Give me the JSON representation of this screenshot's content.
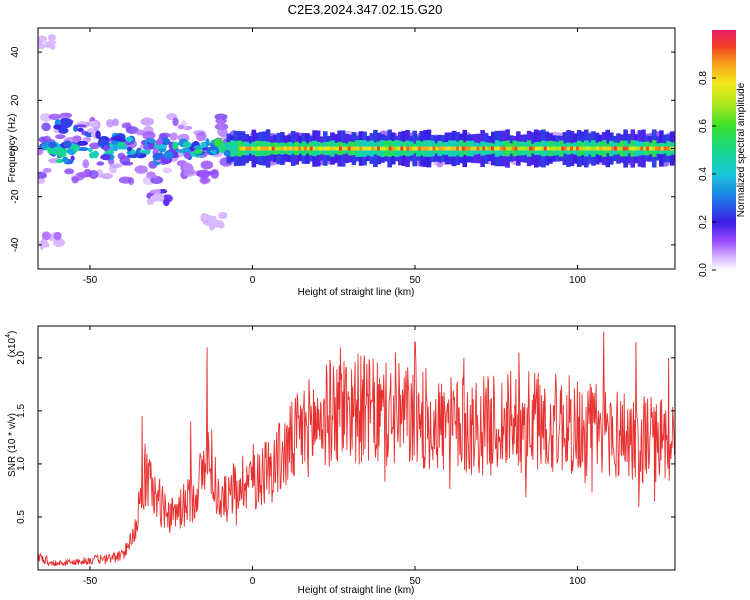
{
  "title": "C2E3.2024.347.02.15.G20",
  "chart_data": [
    {
      "type": "heatmap",
      "xlabel": "Height of straight line (km)",
      "ylabel": "Frequency (Hz)",
      "xlim": [
        -66,
        130
      ],
      "ylim": [
        -50,
        50
      ],
      "xticks": [
        -50,
        0,
        50,
        100
      ],
      "xtick_labels": [
        "-50",
        "0",
        "50",
        "100"
      ],
      "yticks": [
        -40,
        -20,
        0,
        20,
        40
      ],
      "ytick_labels": [
        "-40",
        "-20",
        "0",
        "20",
        "40"
      ],
      "colorbar": {
        "label": "Normalized spectral amplitude",
        "range": [
          0,
          1
        ],
        "ticks": [
          0.0,
          0.2,
          0.4,
          0.6,
          0.8
        ],
        "tick_labels": [
          "0.0",
          "0.2",
          "0.4",
          "0.6",
          "0.8"
        ]
      },
      "description_points": {
        "center_frequency_hz": 0,
        "blobs": [
          {
            "x": -62,
            "y": 0,
            "a": 0.55
          },
          {
            "x": -58,
            "y": -3,
            "a": 0.5
          },
          {
            "x": -55,
            "y": 1,
            "a": 0.5
          },
          {
            "x": -57,
            "y": 9,
            "a": 0.35
          },
          {
            "x": -50,
            "y": 8,
            "a": 0.3
          },
          {
            "x": -47,
            "y": -2,
            "a": 0.5
          },
          {
            "x": -44,
            "y": 2,
            "a": 0.45
          },
          {
            "x": -40,
            "y": 3,
            "a": 0.5
          },
          {
            "x": -35,
            "y": -1,
            "a": 0.55
          },
          {
            "x": -30,
            "y": 2,
            "a": 0.45
          },
          {
            "x": -27,
            "y": -3,
            "a": 0.35
          },
          {
            "x": -22,
            "y": 0,
            "a": 0.5
          },
          {
            "x": -18,
            "y": -1,
            "a": 0.45
          },
          {
            "x": -14,
            "y": 1,
            "a": 0.55
          },
          {
            "x": -10,
            "y": 0,
            "a": 0.6
          },
          {
            "x": -29,
            "y": -20,
            "a": 0.2
          },
          {
            "x": -12,
            "y": -30,
            "a": 0.1
          },
          {
            "x": -64,
            "y": 44,
            "a": 0.1
          },
          {
            "x": -62,
            "y": -38,
            "a": 0.1
          }
        ],
        "band_start_x": -8,
        "band_end_x": 130,
        "band_peak_amplitude": 0.95
      }
    },
    {
      "type": "line",
      "xlabel": "Height of straight line (km)",
      "ylabel": "SNR (10 * v/v)",
      "y_multiplier": "(x10",
      "y_multiplier_exp": "4",
      "y_multiplier_close": ")",
      "xlim": [
        -66,
        130
      ],
      "ylim": [
        0,
        23000
      ],
      "xticks": [
        -50,
        0,
        50,
        100
      ],
      "xtick_labels": [
        "-50",
        "0",
        "50",
        "100"
      ],
      "yticks": [
        5000,
        10000,
        15000,
        20000
      ],
      "ytick_labels": [
        "0.5",
        "1.0",
        "1.5",
        "2.0"
      ],
      "color": "#e8302f",
      "envelope": [
        {
          "x": -66,
          "y": 1200
        },
        {
          "x": -60,
          "y": 600
        },
        {
          "x": -50,
          "y": 900
        },
        {
          "x": -40,
          "y": 1300
        },
        {
          "x": -36,
          "y": 4000
        },
        {
          "x": -33,
          "y": 9000
        },
        {
          "x": -30,
          "y": 7000
        },
        {
          "x": -25,
          "y": 5000
        },
        {
          "x": -18,
          "y": 7000
        },
        {
          "x": -13,
          "y": 11000
        },
        {
          "x": -10,
          "y": 6000
        },
        {
          "x": -5,
          "y": 8000
        },
        {
          "x": 0,
          "y": 9000
        },
        {
          "x": 5,
          "y": 9500
        },
        {
          "x": 10,
          "y": 11000
        },
        {
          "x": 15,
          "y": 13000
        },
        {
          "x": 20,
          "y": 14000
        },
        {
          "x": 25,
          "y": 15000
        },
        {
          "x": 30,
          "y": 15500
        },
        {
          "x": 40,
          "y": 14500
        },
        {
          "x": 50,
          "y": 14500
        },
        {
          "x": 60,
          "y": 13500
        },
        {
          "x": 70,
          "y": 13500
        },
        {
          "x": 80,
          "y": 14000
        },
        {
          "x": 90,
          "y": 14000
        },
        {
          "x": 100,
          "y": 13500
        },
        {
          "x": 110,
          "y": 13000
        },
        {
          "x": 120,
          "y": 12500
        },
        {
          "x": 130,
          "y": 12000
        }
      ],
      "peaks": [
        {
          "x": -34,
          "y": 14500
        },
        {
          "x": -32,
          "y": 10000
        },
        {
          "x": -14,
          "y": 21000
        },
        {
          "x": -19,
          "y": 14000
        },
        {
          "x": 27,
          "y": 21000
        },
        {
          "x": 44,
          "y": 20500
        },
        {
          "x": 50,
          "y": 21500
        },
        {
          "x": 65,
          "y": 20000
        },
        {
          "x": 82,
          "y": 20500
        },
        {
          "x": 108,
          "y": 22500
        },
        {
          "x": 118,
          "y": 21500
        },
        {
          "x": 128,
          "y": 20000
        }
      ]
    }
  ]
}
